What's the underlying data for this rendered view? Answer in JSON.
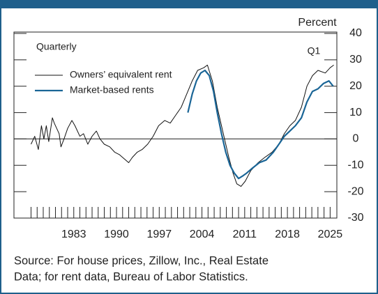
{
  "chart_data": {
    "type": "line",
    "annotations": {
      "quarterly": "Quarterly",
      "latest": "Q1",
      "unit": "Percent"
    },
    "source": [
      "Source: For house prices, Zillow, Inc., Real Estate",
      "Data; for rent data, Bureau of Labor Statistics."
    ],
    "xlim": [
      1973.2,
      2026.1
    ],
    "xticks": [
      1983,
      1990,
      1997,
      2004,
      2011,
      2018,
      2025
    ],
    "xminor_ticks": [
      1976,
      1977,
      1978,
      1979,
      1980,
      1981,
      1982,
      1983,
      1984,
      1985,
      1986,
      1987,
      1988,
      1989,
      1990,
      1991,
      1992,
      1993,
      1994,
      1995,
      1996,
      1997,
      1998,
      1999,
      2000,
      2001,
      2002,
      2003,
      2004,
      2005,
      2006,
      2007,
      2008,
      2009,
      2010,
      2011,
      2012,
      2013,
      2014,
      2015,
      2016,
      2017,
      2018,
      2019,
      2020,
      2021,
      2022,
      2023,
      2024,
      2025
    ],
    "ylim": [
      -30,
      40
    ],
    "yticks": [
      -30,
      -20,
      -10,
      0,
      10,
      20,
      30,
      40
    ],
    "grid": false,
    "legend": "upper left",
    "series": [
      {
        "name": "Owners’ equivalent rent",
        "color": "#111111",
        "x": [
          1976.0,
          1976.6,
          1977.2,
          1977.7,
          1978.1,
          1978.5,
          1978.9,
          1979.5,
          1979.8,
          1980.6,
          1980.9,
          1981.4,
          1982.0,
          1982.7,
          1983.2,
          1984.0,
          1984.6,
          1985.3,
          1986.0,
          1986.7,
          1987.3,
          1988.0,
          1988.9,
          1989.7,
          1990.5,
          1991.5,
          1992.0,
          1992.6,
          1993.4,
          1994.2,
          1995.1,
          1996.0,
          1996.9,
          1997.9,
          1998.8,
          1999.7,
          2000.6,
          2001.5,
          2002.4,
          2003.3,
          2004.3,
          2004.9,
          2005.7,
          2006.5,
          2007.5,
          2008.4,
          2009.1,
          2009.7,
          2010.4,
          2011.1,
          2012.0,
          2013.2,
          2014.3,
          2015.5,
          2016.6,
          2017.5,
          2018.4,
          2019.3,
          2020.3,
          2021.2,
          2022.1,
          2023.0,
          2024.2,
          2025.0,
          2025.6
        ],
        "values": [
          -2,
          1,
          -4,
          5,
          0,
          5,
          -1,
          8,
          6,
          2,
          -3,
          0,
          4,
          7,
          5,
          1,
          2,
          -2,
          1,
          3,
          0,
          -2,
          -3,
          -5,
          -6,
          -8,
          -9,
          -7,
          -5,
          -4,
          -2,
          1,
          5,
          7,
          6,
          9,
          12,
          17,
          22,
          26,
          27,
          28,
          22,
          12,
          2,
          -7,
          -13,
          -17,
          -18,
          -16,
          -12,
          -9,
          -7,
          -5,
          -2,
          2,
          5,
          7,
          12,
          20,
          24,
          26,
          25,
          27,
          28
        ]
      },
      {
        "name": "Market-based rents",
        "color": "#1a6596",
        "x": [
          2001.7,
          2002.4,
          2003.1,
          2003.8,
          2004.5,
          2005.2,
          2005.9,
          2006.5,
          2007.2,
          2007.9,
          2008.6,
          2009.3,
          2010.0,
          2010.7,
          2011.3,
          2012.3,
          2013.4,
          2014.5,
          2015.7,
          2016.6,
          2017.5,
          2018.4,
          2019.3,
          2020.3,
          2021.2,
          2022.1,
          2023.0,
          2023.9,
          2024.8,
          2025.5
        ],
        "values": [
          10,
          17,
          22,
          25,
          26,
          24,
          18,
          10,
          2,
          -5,
          -10,
          -13,
          -15,
          -14,
          -13,
          -11,
          -9,
          -8,
          -5,
          -2,
          1,
          3,
          5,
          8,
          14,
          18,
          19,
          21,
          22,
          20
        ]
      }
    ]
  }
}
